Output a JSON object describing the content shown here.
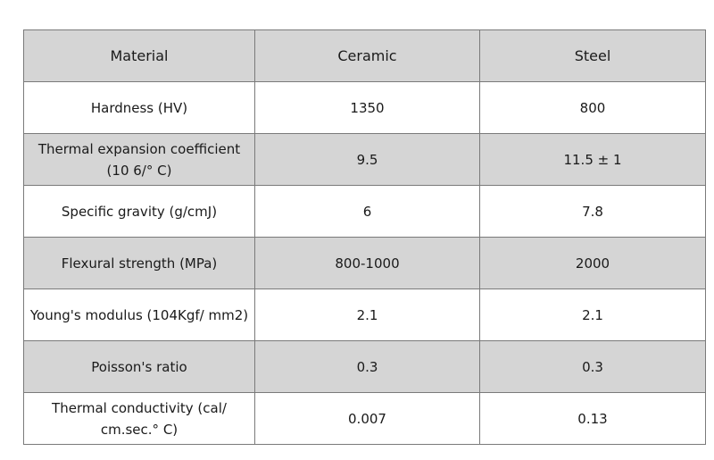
{
  "table": {
    "headers": [
      "Material",
      "Ceramic",
      "Steel"
    ],
    "rows": [
      {
        "property": "Hardness (HV)",
        "ceramic": "1350",
        "steel": "800",
        "shaded": false
      },
      {
        "property": "Thermal expansion coefficient (10 6/° C)",
        "ceramic": "9.5",
        "steel": "11.5 ± 1",
        "shaded": true
      },
      {
        "property": "Specific gravity (g/cmJ)",
        "ceramic": "6",
        "steel": "7.8",
        "shaded": false
      },
      {
        "property": "Flexural strength (MPa)",
        "ceramic": "800-1000",
        "steel": "2000",
        "shaded": true
      },
      {
        "property": "Young's modulus (104Kgf/ mm2)",
        "ceramic": "2.1",
        "steel": "2.1",
        "shaded": false
      },
      {
        "property": "Poisson's ratio",
        "ceramic": "0.3",
        "steel": "0.3",
        "shaded": true
      },
      {
        "property": "Thermal conductivity (cal/ cm.sec.° C)",
        "ceramic": "0.007",
        "steel": "0.13",
        "shaded": false
      }
    ]
  }
}
